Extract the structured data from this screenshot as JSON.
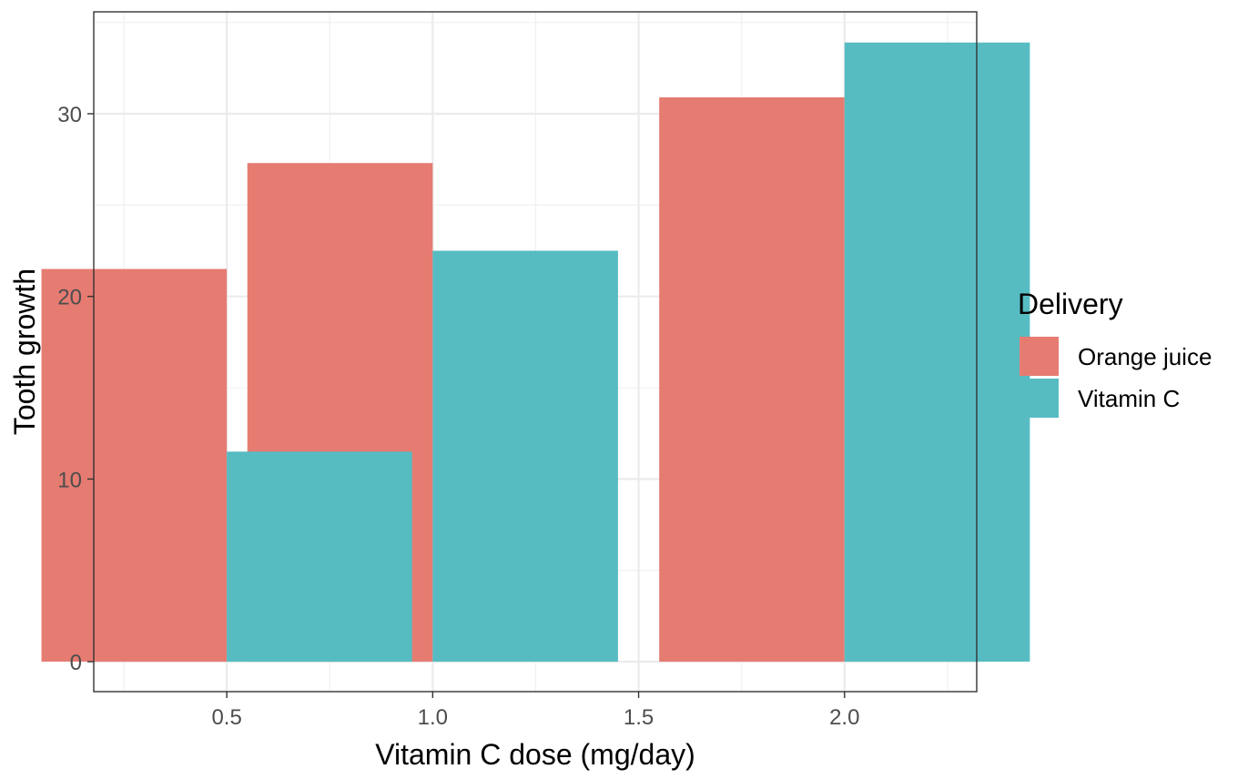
{
  "chart_data": {
    "type": "bar",
    "title": "",
    "xlabel": "Vitamin C dose (mg/day)",
    "ylabel": "Tooth growth",
    "x": [
      0.5,
      1.0,
      2.0
    ],
    "series": [
      {
        "name": "Orange juice",
        "color": "#E67B72",
        "values": [
          21.5,
          27.3,
          30.9
        ]
      },
      {
        "name": "Vitamin C",
        "color": "#56BCC2",
        "values": [
          11.5,
          22.5,
          33.9
        ]
      }
    ],
    "xlim": [
      0.177,
      2.321
    ],
    "ylim": [
      -1.64,
      35.58
    ],
    "x_ticks": [
      0.5,
      1.0,
      1.5,
      2.0
    ],
    "x_tick_labels": [
      "0.5",
      "1.0",
      "1.5",
      "2.0"
    ],
    "x_minor_ticks": [
      0.25,
      0.75,
      1.25,
      1.75,
      2.25
    ],
    "y_ticks": [
      0,
      10,
      20,
      30
    ],
    "y_tick_labels": [
      "0",
      "10",
      "20",
      "30"
    ],
    "y_minor_ticks": [
      5,
      15,
      25,
      35
    ],
    "bar_width": 0.45,
    "grid": true,
    "legend": {
      "title": "Delivery",
      "position": "right",
      "entries": [
        "Orange juice",
        "Vitamin C"
      ]
    },
    "theme": "bw"
  }
}
